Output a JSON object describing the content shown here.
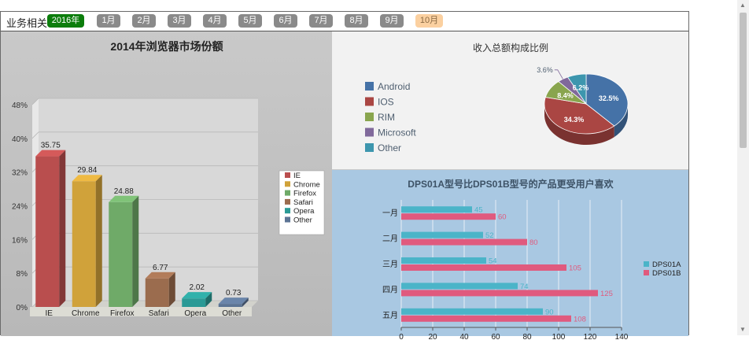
{
  "topbar": {
    "title": "业务相关",
    "year": "2016年",
    "months": [
      "1月",
      "2月",
      "3月",
      "4月",
      "5月",
      "6月",
      "7月",
      "8月",
      "9月",
      "10月"
    ]
  },
  "colors": {
    "year_active": "#0c7d0c",
    "month_inactive": "#8a8a8a",
    "month_highlight": "#fbd0a0"
  },
  "chart_data": [
    {
      "type": "bar",
      "title": "2014年浏览器市场份额",
      "categories": [
        "IE",
        "Chrome",
        "Firefox",
        "Safari",
        "Opera",
        "Other"
      ],
      "values": [
        35.75,
        29.84,
        24.88,
        6.77,
        2.02,
        0.73
      ],
      "colors": [
        "#b94e4e",
        "#d0a23a",
        "#6faa68",
        "#9b6c4e",
        "#2a9a95",
        "#5c7494"
      ],
      "ylim": [
        0,
        48
      ],
      "yticks": [
        "0%",
        "8%",
        "16%",
        "24%",
        "32%",
        "40%",
        "48%"
      ],
      "legend": [
        "IE",
        "Chrome",
        "Firefox",
        "Safari",
        "Opera",
        "Other"
      ],
      "legend_position": "right",
      "grid": true
    },
    {
      "type": "pie",
      "title": "收入总额构成比例",
      "labels": [
        "Android",
        "IOS",
        "RIM",
        "Microsoft",
        "Other"
      ],
      "values": [
        32.5,
        34.3,
        8.4,
        3.6,
        6.2
      ],
      "value_labels": [
        "32.5%",
        "34.3%",
        "8.4%",
        "3.6%",
        "6.2%"
      ],
      "colors": [
        "#4572a7",
        "#aa4643",
        "#89a54e",
        "#80699b",
        "#3d96ae"
      ],
      "legend_position": "left"
    },
    {
      "type": "bar",
      "orientation": "horizontal",
      "title": "DPS01A型号比DPS01B型号的产品更受用户喜欢",
      "categories": [
        "一月",
        "二月",
        "三月",
        "四月",
        "五月"
      ],
      "series": [
        {
          "name": "DPS01A",
          "values": [
            45,
            52,
            54,
            74,
            90
          ],
          "color": "#4bb4c8"
        },
        {
          "name": "DPS01B",
          "values": [
            60,
            80,
            105,
            125,
            108
          ],
          "color": "#e05a7e"
        }
      ],
      "xlim": [
        0,
        140
      ],
      "xticks": [
        "0",
        "20",
        "40",
        "60",
        "80",
        "100",
        "120",
        "140"
      ],
      "legend_position": "right",
      "grid": true
    }
  ]
}
